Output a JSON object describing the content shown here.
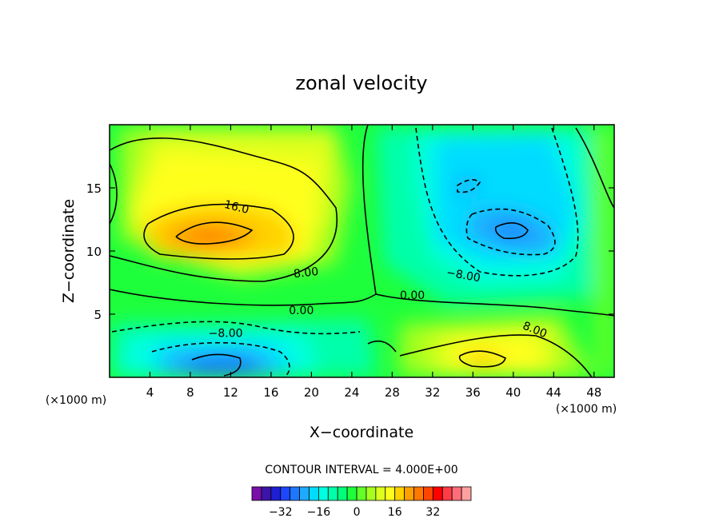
{
  "chart_data": {
    "type": "heatmap",
    "title": "zonal velocity",
    "xlabel": "X−coordinate",
    "ylabel": "Z−coordinate",
    "x_units_left": "(×1000 m)",
    "x_units_right": "(×1000 m)",
    "xlim": [
      0,
      50
    ],
    "ylim": [
      0,
      20
    ],
    "x_ticks": [
      4,
      8,
      12,
      16,
      20,
      24,
      28,
      32,
      36,
      40,
      44,
      48
    ],
    "x_tick_labels": [
      "4",
      "8",
      "12",
      "16",
      "20",
      "24",
      "28",
      "32",
      "36",
      "40",
      "44",
      "48"
    ],
    "y_ticks": [
      5,
      10,
      15
    ],
    "y_tick_labels": [
      "5",
      "10",
      "15"
    ],
    "contour_interval_text": "CONTOUR INTERVAL = 4.000E+00",
    "contour_labels": [
      {
        "text": "16.0",
        "x": 12.5,
        "z": 13.2,
        "rotate": 14
      },
      {
        "text": "8.00",
        "x": 19.5,
        "z": 8.0,
        "rotate": -6
      },
      {
        "text": "0.00",
        "x": 19.0,
        "z": 5.0,
        "rotate": 0
      },
      {
        "text": "−8.00",
        "x": 11.5,
        "z": 3.2,
        "rotate": 0
      },
      {
        "text": "0.00",
        "x": 30.0,
        "z": 6.2,
        "rotate": 0
      },
      {
        "text": "−8.00",
        "x": 35.0,
        "z": 7.8,
        "rotate": 10
      },
      {
        "text": "8.00",
        "x": 42.0,
        "z": 3.5,
        "rotate": 22
      }
    ],
    "features": [
      {
        "name": "positive-core",
        "x": 10,
        "z": 11.3,
        "value": 23
      },
      {
        "name": "negative-core-upper",
        "x": 40.5,
        "z": 11.8,
        "value": -18
      },
      {
        "name": "negative-core-lower",
        "x": 11,
        "z": 1.2,
        "value": -16
      },
      {
        "name": "positive-core-lower",
        "x": 38,
        "z": 1.3,
        "value": 18
      },
      {
        "name": "negative-patch",
        "x": 35.5,
        "z": 15.3,
        "value": -12
      }
    ],
    "colorbar": {
      "colors": [
        "#7a10a8",
        "#3c14a8",
        "#1e1ed2",
        "#1e46ff",
        "#1e78ff",
        "#1eaaff",
        "#00dcff",
        "#00ffe0",
        "#00ffaa",
        "#00ff78",
        "#1eff3c",
        "#64ff28",
        "#a6ff1e",
        "#dcff1e",
        "#ffff1e",
        "#ffd200",
        "#ffa000",
        "#ff7800",
        "#ff4600",
        "#ff0000",
        "#ff3c46",
        "#ff6e78",
        "#ffa0a0"
      ],
      "tick_labels": [
        "−32",
        "−16",
        "0",
        "16",
        "32"
      ],
      "tick_values": [
        -32,
        -16,
        0,
        16,
        32
      ],
      "min": -44,
      "max": 48
    }
  }
}
